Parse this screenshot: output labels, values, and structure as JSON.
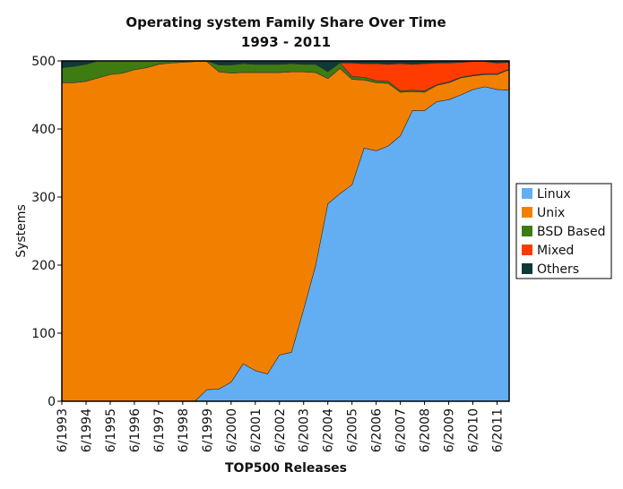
{
  "chart_data": {
    "type": "area",
    "stacked": true,
    "title": "Operating system Family Share Over Time",
    "subtitle": "1993 - 2011",
    "xlabel": "TOP500 Releases",
    "ylabel": "Systems",
    "ylim": [
      0,
      500
    ],
    "yticks": [
      0,
      100,
      200,
      300,
      400,
      500
    ],
    "x_tick_labels": [
      "6/1993",
      "6/1994",
      "6/1995",
      "6/1996",
      "6/1997",
      "6/1998",
      "6/1999",
      "6/2000",
      "6/2001",
      "6/2002",
      "6/2003",
      "6/2004",
      "6/2005",
      "6/2006",
      "6/2007",
      "6/2008",
      "6/2009",
      "6/2010",
      "6/2011"
    ],
    "x": [
      "6/1993",
      "11/1993",
      "6/1994",
      "11/1994",
      "6/1995",
      "11/1995",
      "6/1996",
      "11/1996",
      "6/1997",
      "11/1997",
      "6/1998",
      "11/1998",
      "6/1999",
      "11/1999",
      "6/2000",
      "11/2000",
      "6/2001",
      "11/2001",
      "6/2002",
      "11/2002",
      "6/2003",
      "11/2003",
      "6/2004",
      "11/2004",
      "6/2005",
      "11/2005",
      "6/2006",
      "11/2006",
      "6/2007",
      "11/2007",
      "6/2008",
      "11/2008",
      "6/2009",
      "11/2009",
      "6/2010",
      "11/2010",
      "6/2011",
      "11/2011"
    ],
    "legend_position": "right",
    "grid": false,
    "series": [
      {
        "name": "Linux",
        "color": "#63aef2",
        "values": [
          0,
          0,
          0,
          0,
          0,
          0,
          0,
          0,
          0,
          0,
          0,
          0,
          17,
          18,
          28,
          55,
          45,
          40,
          68,
          72,
          135,
          200,
          290,
          305,
          318,
          372,
          368,
          375,
          390,
          427,
          427,
          440,
          443,
          450,
          458,
          462,
          458,
          457
        ]
      },
      {
        "name": "Unix",
        "color": "#f28000",
        "values": [
          468,
          468,
          470,
          475,
          480,
          482,
          487,
          490,
          495,
          497,
          498,
          499,
          482,
          466,
          454,
          428,
          438,
          443,
          415,
          412,
          349,
          283,
          184,
          184,
          155,
          100,
          100,
          92,
          64,
          28,
          27,
          24,
          25,
          25,
          20,
          18,
          22,
          30
        ]
      },
      {
        "name": "BSD Based",
        "color": "#3e7c12",
        "values": [
          22,
          24,
          25,
          25,
          20,
          18,
          13,
          10,
          5,
          3,
          2,
          1,
          1,
          10,
          12,
          13,
          12,
          12,
          12,
          12,
          11,
          12,
          10,
          8,
          4,
          4,
          3,
          3,
          2,
          2,
          2,
          1,
          1,
          1,
          1,
          1,
          1,
          1
        ]
      },
      {
        "name": "Mixed",
        "color": "#ff3c00",
        "values": [
          0,
          0,
          0,
          0,
          0,
          0,
          0,
          0,
          0,
          0,
          0,
          0,
          0,
          0,
          0,
          0,
          0,
          0,
          0,
          0,
          0,
          0,
          0,
          0,
          20,
          20,
          25,
          25,
          40,
          38,
          40,
          32,
          28,
          22,
          20,
          18,
          16,
          10
        ]
      },
      {
        "name": "Others",
        "color": "#0d3a38",
        "values": [
          10,
          8,
          5,
          0,
          0,
          0,
          0,
          0,
          0,
          0,
          0,
          0,
          0,
          6,
          6,
          4,
          5,
          5,
          5,
          4,
          5,
          5,
          16,
          3,
          3,
          4,
          4,
          5,
          4,
          5,
          4,
          3,
          3,
          2,
          1,
          1,
          3,
          2
        ]
      }
    ]
  }
}
